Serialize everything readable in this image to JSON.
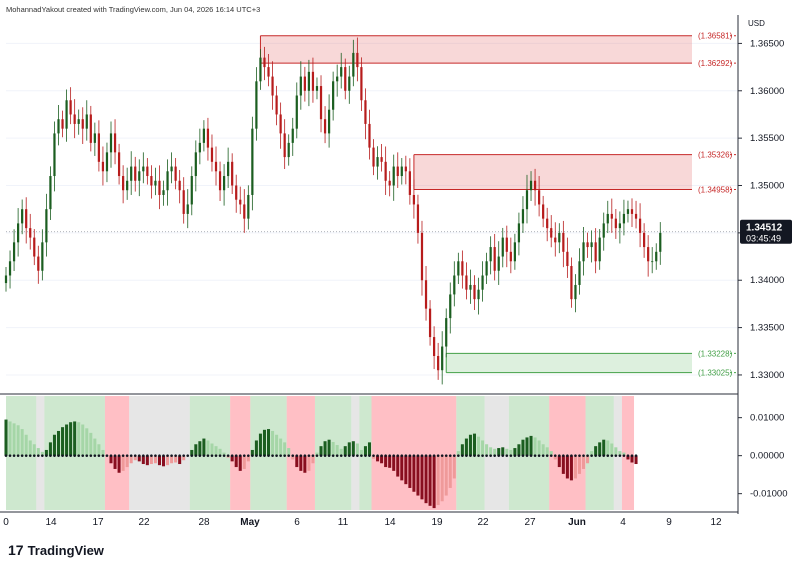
{
  "header": {
    "caption": "MohannadYakout created with TradingView.com, Jun 04, 2026 16:14 UTC+3"
  },
  "footer": {
    "logo_glyph": "17",
    "brand": "TradingView"
  },
  "chart_data": [
    {
      "type": "candlestick",
      "currency_label": "USD",
      "ylim": [
        1.3282,
        1.368
      ],
      "y_ticks": [
        1.33,
        1.335,
        1.34,
        1.345,
        1.35,
        1.355,
        1.36,
        1.365
      ],
      "y_tick_labels": [
        "1.33000",
        "1.33500",
        "1.34000",
        "1.34500",
        "1.35000",
        "1.35500",
        "1.36000",
        "1.36500"
      ],
      "x_tick_labels": [
        "0",
        "14",
        "17",
        "22",
        "28",
        "May",
        "6",
        "11",
        "14",
        "19",
        "22",
        "27",
        "Jun",
        "4",
        "9",
        "12"
      ],
      "last_price": "1.34512",
      "countdown": "03:45:49",
      "last_value": 1.34512,
      "up_color": "#1b5e20",
      "down_color": "#b71c1c",
      "zones": [
        {
          "type": "supply",
          "top": 1.36581,
          "bottom": 1.36292,
          "top_label": "(1.36581)",
          "bottom_label": "(1.36292)",
          "color": "#e57373"
        },
        {
          "type": "supply",
          "top": 1.35326,
          "bottom": 1.34958,
          "top_label": "(1.35326)",
          "bottom_label": "(1.34958)",
          "color": "#e57373"
        },
        {
          "type": "demand",
          "top": 1.33228,
          "bottom": 1.33025,
          "top_label": "(1.33228)",
          "bottom_label": "(1.33025)",
          "color": "#66bb6a"
        }
      ],
      "close_series": [
        1.3405,
        1.342,
        1.344,
        1.346,
        1.3475,
        1.3455,
        1.3445,
        1.3425,
        1.341,
        1.344,
        1.3475,
        1.351,
        1.3555,
        1.357,
        1.356,
        1.359,
        1.3575,
        1.3565,
        1.357,
        1.356,
        1.3575,
        1.3545,
        1.3555,
        1.3525,
        1.3515,
        1.3535,
        1.3555,
        1.3535,
        1.351,
        1.3495,
        1.3505,
        1.352,
        1.3505,
        1.3515,
        1.352,
        1.351,
        1.35,
        1.3505,
        1.349,
        1.3495,
        1.3515,
        1.352,
        1.3505,
        1.3495,
        1.347,
        1.348,
        1.351,
        1.3535,
        1.3545,
        1.356,
        1.354,
        1.3525,
        1.3515,
        1.3495,
        1.351,
        1.3525,
        1.35,
        1.3485,
        1.348,
        1.3465,
        1.349,
        1.356,
        1.361,
        1.3635,
        1.3625,
        1.3615,
        1.3595,
        1.3575,
        1.3555,
        1.353,
        1.3545,
        1.356,
        1.3595,
        1.3615,
        1.36,
        1.362,
        1.36,
        1.3605,
        1.357,
        1.3555,
        1.358,
        1.361,
        1.3615,
        1.3625,
        1.36,
        1.3615,
        1.364,
        1.3625,
        1.359,
        1.3565,
        1.354,
        1.352,
        1.353,
        1.3525,
        1.3505,
        1.35,
        1.352,
        1.351,
        1.352,
        1.3515,
        1.349,
        1.348,
        1.345,
        1.34,
        1.337,
        1.334,
        1.332,
        1.3305,
        1.333,
        1.336,
        1.3385,
        1.3405,
        1.342,
        1.3405,
        1.339,
        1.3395,
        1.338,
        1.339,
        1.3405,
        1.342,
        1.3435,
        1.341,
        1.3425,
        1.3445,
        1.343,
        1.342,
        1.344,
        1.346,
        1.3475,
        1.3495,
        1.3505,
        1.3495,
        1.348,
        1.3465,
        1.3455,
        1.3445,
        1.344,
        1.345,
        1.343,
        1.3415,
        1.338,
        1.3395,
        1.342,
        1.344,
        1.3435,
        1.344,
        1.342,
        1.3445,
        1.346,
        1.347,
        1.3465,
        1.3455,
        1.346,
        1.347,
        1.3475,
        1.347,
        1.3465,
        1.345,
        1.3435,
        1.342,
        1.342,
        1.343,
        1.345
      ],
      "last_day_index": 155,
      "last_day_x": 632
    },
    {
      "type": "histogram",
      "ylim": [
        -0.0143,
        0.0157
      ],
      "y_ticks": [
        0.01,
        0.0,
        -0.01
      ],
      "y_tick_labels": [
        "0.01000",
        "0.00000",
        "-0.01000"
      ],
      "pos_strong_color": "#1b5e20",
      "pos_weak_color": "#a5d6a7",
      "neg_strong_color": "#880e1f",
      "neg_weak_color": "#ef9a9a",
      "regimes": [
        {
          "start": 0,
          "end": 8,
          "state": "bull"
        },
        {
          "start": 8,
          "end": 10,
          "state": "neutral"
        },
        {
          "start": 10,
          "end": 25,
          "state": "bull"
        },
        {
          "start": 25,
          "end": 31,
          "state": "bear"
        },
        {
          "start": 31,
          "end": 46,
          "state": "neutral"
        },
        {
          "start": 46,
          "end": 56,
          "state": "bull"
        },
        {
          "start": 56,
          "end": 61,
          "state": "bear"
        },
        {
          "start": 61,
          "end": 70,
          "state": "bull"
        },
        {
          "start": 70,
          "end": 77,
          "state": "bear"
        },
        {
          "start": 77,
          "end": 86,
          "state": "bull"
        },
        {
          "start": 86,
          "end": 88,
          "state": "neutral"
        },
        {
          "start": 88,
          "end": 91,
          "state": "bull"
        },
        {
          "start": 91,
          "end": 112,
          "state": "bear"
        },
        {
          "start": 112,
          "end": 119,
          "state": "bull"
        },
        {
          "start": 119,
          "end": 125,
          "state": "neutral"
        },
        {
          "start": 125,
          "end": 135,
          "state": "bull"
        },
        {
          "start": 135,
          "end": 144,
          "state": "bear"
        },
        {
          "start": 144,
          "end": 151,
          "state": "bull"
        },
        {
          "start": 151,
          "end": 153,
          "state": "neutral"
        },
        {
          "start": 153,
          "end": 156,
          "state": "bear"
        }
      ],
      "values": [
        0.0095,
        0.009,
        0.0085,
        0.008,
        0.007,
        0.0055,
        0.004,
        0.003,
        0.002,
        0.001,
        0.0015,
        0.0035,
        0.0055,
        0.0065,
        0.0075,
        0.0082,
        0.0088,
        0.009,
        0.0088,
        0.0082,
        0.0072,
        0.006,
        0.0045,
        0.003,
        0.0015,
        0.0,
        -0.002,
        -0.0035,
        -0.0045,
        -0.004,
        -0.003,
        -0.002,
        -0.0012,
        -0.0015,
        -0.0022,
        -0.0025,
        -0.0022,
        -0.002,
        -0.0025,
        -0.0028,
        -0.0025,
        -0.002,
        -0.0018,
        -0.0022,
        -0.0012,
        0.0,
        0.0015,
        0.003,
        0.0038,
        0.0045,
        0.004,
        0.0032,
        0.0025,
        0.0018,
        0.0008,
        -0.0005,
        -0.0015,
        -0.003,
        -0.004,
        -0.0035,
        -0.0015,
        0.0015,
        0.004,
        0.0058,
        0.0068,
        0.007,
        0.0065,
        0.0055,
        0.0045,
        0.0035,
        0.002,
        -0.001,
        -0.003,
        -0.004,
        -0.0045,
        -0.004,
        -0.002,
        0.0008,
        0.0025,
        0.0038,
        0.0042,
        0.0036,
        0.0028,
        0.0018,
        0.0025,
        0.0035,
        0.0038,
        0.0032,
        0.0015,
        0.0025,
        0.0035,
        -0.0008,
        -0.0015,
        -0.002,
        -0.003,
        -0.0032,
        -0.004,
        -0.0055,
        -0.0065,
        -0.0075,
        -0.0085,
        -0.0095,
        -0.0105,
        -0.0115,
        -0.0125,
        -0.0132,
        -0.0138,
        -0.013,
        -0.012,
        -0.0105,
        -0.0085,
        -0.006,
        0.0012,
        0.003,
        0.0045,
        0.0055,
        0.0058,
        0.005,
        0.004,
        0.003,
        0.0022,
        0.0018,
        0.002,
        0.0022,
        0.0018,
        0.0015,
        0.002,
        0.003,
        0.0042,
        0.0048,
        0.0052,
        0.0048,
        0.004,
        0.003,
        0.0022,
        0.0012,
        -0.001,
        -0.003,
        -0.0048,
        -0.006,
        -0.0065,
        -0.006,
        -0.0048,
        -0.0035,
        -0.002,
        0.0012,
        0.0025,
        0.0035,
        0.0042,
        0.004,
        0.0032,
        0.0022,
        0.0012,
        0.0008,
        -0.001,
        -0.0018,
        -0.0022
      ]
    }
  ]
}
